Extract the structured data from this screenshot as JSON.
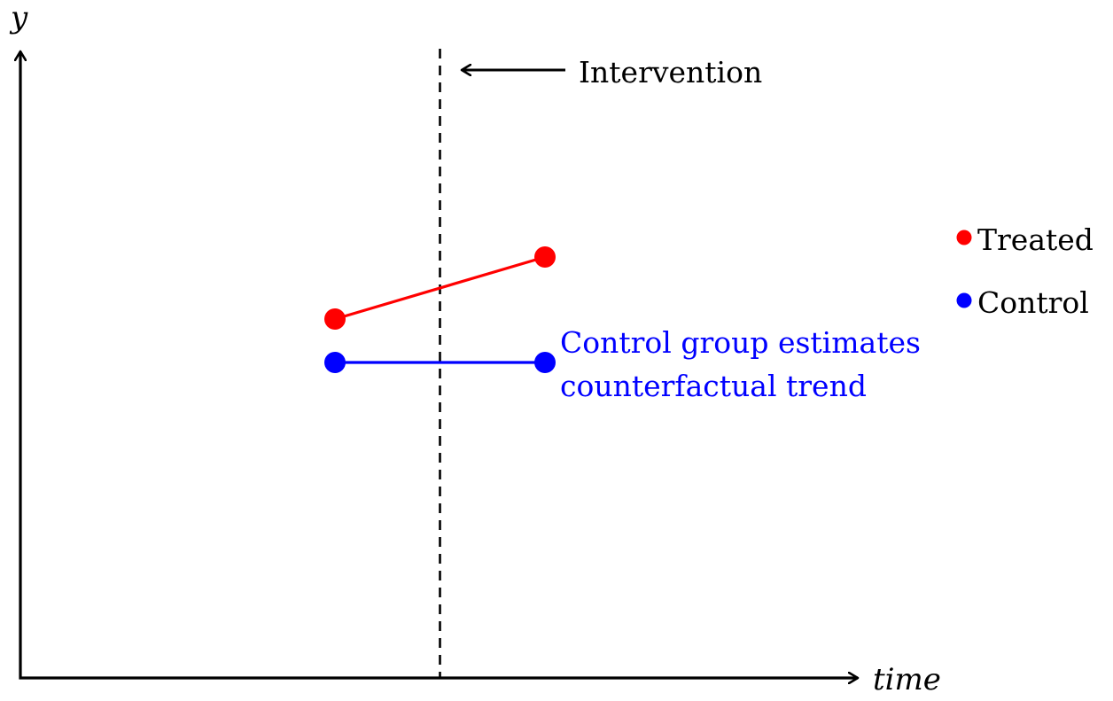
{
  "chart_data": {
    "type": "line",
    "title": "",
    "xlabel": "time",
    "ylabel": "y",
    "grid": false,
    "legend_placement": "right",
    "x": [
      0,
      1
    ],
    "xlim": [
      -1.5,
      2.5
    ],
    "ylim": [
      0,
      1
    ],
    "intervention": {
      "x": 0.5,
      "label": "Intervention"
    },
    "series": [
      {
        "name": "Treated",
        "color": "#ff0000",
        "values": [
          0.57,
          0.67
        ]
      },
      {
        "name": "Control",
        "color": "#0000ff",
        "values": [
          0.5,
          0.5
        ]
      }
    ],
    "annotations": [
      {
        "text_lines": [
          "Control group estimates",
          "counterfactual trend"
        ],
        "color": "#0000ff",
        "anchor_series": "Control",
        "anchor_index": 1
      }
    ]
  }
}
